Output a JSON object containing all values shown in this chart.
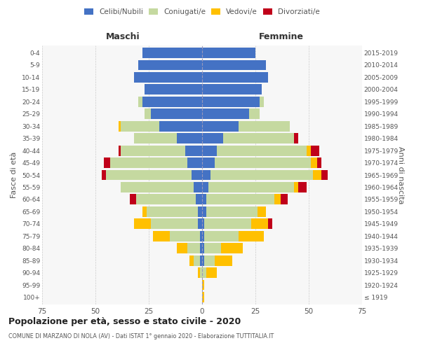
{
  "age_groups": [
    "100+",
    "95-99",
    "90-94",
    "85-89",
    "80-84",
    "75-79",
    "70-74",
    "65-69",
    "60-64",
    "55-59",
    "50-54",
    "45-49",
    "40-44",
    "35-39",
    "30-34",
    "25-29",
    "20-24",
    "15-19",
    "10-14",
    "5-9",
    "0-4"
  ],
  "birth_years": [
    "≤ 1919",
    "1920-1924",
    "1925-1929",
    "1930-1934",
    "1935-1939",
    "1940-1944",
    "1945-1949",
    "1950-1954",
    "1955-1959",
    "1960-1964",
    "1965-1969",
    "1970-1974",
    "1975-1979",
    "1980-1984",
    "1985-1989",
    "1990-1994",
    "1995-1999",
    "2000-2004",
    "2005-2009",
    "2010-2014",
    "2015-2019"
  ],
  "maschi_celibi": [
    0,
    0,
    0,
    1,
    1,
    1,
    2,
    2,
    3,
    4,
    5,
    7,
    8,
    12,
    20,
    24,
    28,
    27,
    32,
    30,
    28
  ],
  "maschi_coniugati": [
    0,
    0,
    1,
    3,
    6,
    14,
    22,
    24,
    28,
    34,
    40,
    36,
    30,
    20,
    18,
    3,
    2,
    0,
    0,
    0,
    0
  ],
  "maschi_vedovi": [
    0,
    0,
    1,
    2,
    5,
    8,
    8,
    2,
    0,
    0,
    0,
    0,
    0,
    0,
    1,
    0,
    0,
    0,
    0,
    0,
    0
  ],
  "maschi_divorziati": [
    0,
    0,
    0,
    0,
    0,
    0,
    0,
    0,
    3,
    0,
    2,
    3,
    1,
    0,
    0,
    0,
    0,
    0,
    0,
    0,
    0
  ],
  "femmine_celibi": [
    0,
    0,
    0,
    1,
    1,
    1,
    1,
    2,
    2,
    3,
    4,
    6,
    7,
    10,
    17,
    22,
    27,
    28,
    31,
    30,
    25
  ],
  "femmine_coniugati": [
    0,
    0,
    2,
    5,
    8,
    16,
    22,
    24,
    32,
    40,
    48,
    45,
    42,
    33,
    24,
    5,
    2,
    0,
    0,
    0,
    0
  ],
  "femmine_vedovi": [
    1,
    1,
    5,
    8,
    10,
    12,
    8,
    4,
    3,
    2,
    4,
    3,
    2,
    0,
    0,
    0,
    0,
    0,
    0,
    0,
    0
  ],
  "femmine_divorziati": [
    0,
    0,
    0,
    0,
    0,
    0,
    2,
    0,
    3,
    4,
    3,
    2,
    4,
    2,
    0,
    0,
    0,
    0,
    0,
    0,
    0
  ],
  "color_celibi": "#4472c4",
  "color_coniugati": "#c5d9a0",
  "color_vedovi": "#ffc000",
  "color_divorziati": "#c0001a",
  "color_grid": "#cccccc",
  "color_bg": "#ffffff",
  "color_text": "#555555",
  "color_axbg": "#f7f7f7",
  "title": "Popolazione per età, sesso e stato civile - 2020",
  "subtitle": "COMUNE DI MARZANO DI NOLA (AV) - Dati ISTAT 1° gennaio 2020 - Elaborazione TUTTITALIA.IT",
  "label_maschi": "Maschi",
  "label_femmine": "Femmine",
  "ylabel": "Fasce di età",
  "ylabel_right": "Anni di nascita",
  "legend_celibi": "Celibi/Nubili",
  "legend_coniugati": "Coniugati/e",
  "legend_vedovi": "Vedovi/e",
  "legend_divorziati": "Divorziati/e",
  "xlim": 75
}
